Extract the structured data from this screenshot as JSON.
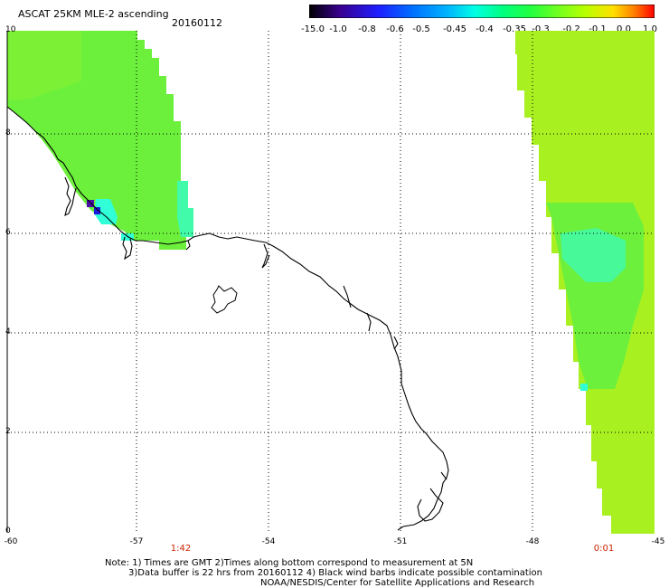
{
  "title": "ASCAT 25KM MLE-2 ascending",
  "date": "20160112",
  "colorbar": {
    "labels": [
      "-15.0",
      "-1.0",
      "-0.8",
      "-0.6",
      "-0.5",
      "-0.45",
      "-0.4",
      "-0.35",
      "-0.3",
      "-0.2",
      "-0.1",
      "0.0",
      "1.0"
    ],
    "colors": [
      "#000000",
      "#3a0090",
      "#1e1eff",
      "#0070ff",
      "#00b4ff",
      "#00ffe4",
      "#00ff80",
      "#20ff40",
      "#70ff20",
      "#b8ff00",
      "#ffe000",
      "#ff8000",
      "#ff0000"
    ]
  },
  "axes": {
    "lat_labels": [
      "10",
      "8",
      "6",
      "4",
      "2",
      "0"
    ],
    "lon_labels": [
      "-60",
      "-57",
      "-54",
      "-51",
      "-48",
      "-45"
    ]
  },
  "pass_times": [
    "1:42",
    "0:01"
  ],
  "notes": {
    "line1": "Note: 1) Times are GMT 2)Times along bottom correspond to measurement at 5N",
    "line2": "3)Data buffer is 22 hrs from 20160112 4) Black wind barbs indicate possible contamination",
    "line3": "NOAA/NESDIS/Center for Satellite Applications and Research"
  },
  "colors": {
    "swath_green": "#6cf03c",
    "swath_yellowgreen": "#a8f020",
    "swath_cyan": "#30ffd8",
    "swath_blue": "#1a1ad8",
    "swath_purple": "#4a10a8",
    "grid": "#000000",
    "coastline": "#000000",
    "pass_time": "#cc2200"
  }
}
